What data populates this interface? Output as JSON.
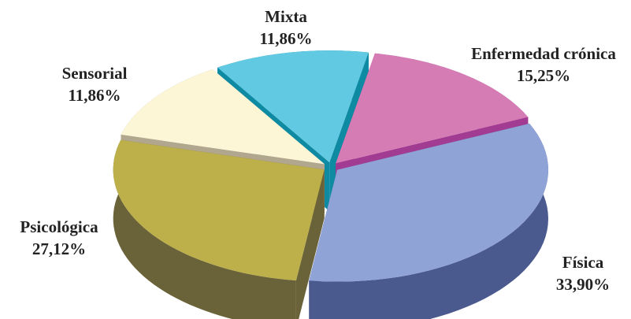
{
  "chart_data": {
    "type": "pie",
    "categories": [
      "Mixta",
      "Enfermedad crónica",
      "Física",
      "Psicológica",
      "Sensorial"
    ],
    "values": [
      11.86,
      15.25,
      33.9,
      27.12,
      11.86
    ],
    "value_labels": [
      "11,86%",
      "15,25%",
      "33,90%",
      "27,12%",
      "11,86%"
    ],
    "colors": [
      "#62c9e2",
      "#d67cb4",
      "#8fa3d6",
      "#bdb04a",
      "#fcf5d6"
    ],
    "side_colors": [
      "#0e8aa2",
      "#a23c92",
      "#4b5a8e",
      "#6a6238",
      "#b0a78e"
    ]
  }
}
